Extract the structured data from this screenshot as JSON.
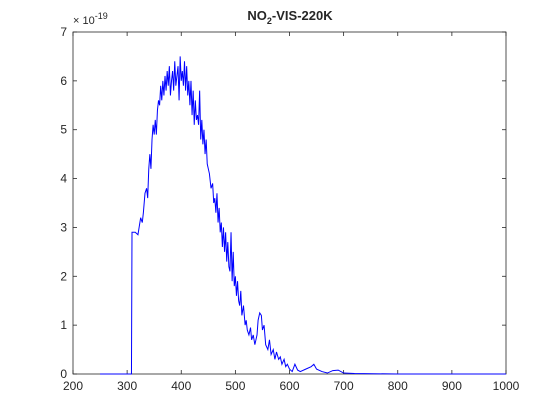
{
  "chart_data": {
    "type": "line",
    "title": {
      "main": "NO",
      "sub": "2",
      "rest": "-VIS-220K"
    },
    "y_exponent": {
      "base": "× 10",
      "power": "-19"
    },
    "x": [
      250,
      305,
      308,
      309,
      315,
      320,
      325,
      328,
      330,
      333,
      336,
      338,
      340,
      342,
      344,
      346,
      348,
      350,
      352,
      354,
      356,
      358,
      360,
      362,
      364,
      366,
      368,
      370,
      372,
      374,
      376,
      378,
      380,
      382,
      384,
      386,
      388,
      390,
      392,
      394,
      396,
      398,
      400,
      402,
      404,
      406,
      408,
      410,
      412,
      414,
      416,
      418,
      420,
      422,
      424,
      426,
      428,
      430,
      432,
      434,
      436,
      438,
      440,
      442,
      444,
      446,
      448,
      450,
      452,
      455,
      458,
      460,
      462,
      464,
      466,
      468,
      470,
      472,
      474,
      476,
      478,
      480,
      482,
      484,
      486,
      488,
      490,
      492,
      494,
      496,
      498,
      500,
      502,
      504,
      506,
      508,
      510,
      512,
      515,
      518,
      520,
      522,
      525,
      528,
      530,
      533,
      536,
      538,
      540,
      542,
      545,
      548,
      550,
      553,
      556,
      560,
      563,
      566,
      570,
      573,
      576,
      580,
      583,
      586,
      590,
      593,
      596,
      600,
      605,
      610,
      615,
      620,
      630,
      640,
      645,
      650,
      660,
      670,
      680,
      690,
      700,
      720,
      800,
      900,
      1000
    ],
    "series": [
      {
        "color": "#0000ff",
        "values": [
          0,
          0,
          0,
          2.9,
          2.9,
          2.85,
          3.2,
          3.1,
          3.3,
          3.7,
          3.8,
          3.6,
          4.2,
          4.5,
          4.2,
          4.8,
          5.1,
          4.9,
          5.2,
          4.9,
          5.4,
          5.6,
          5.5,
          5.9,
          5.6,
          6.0,
          5.7,
          6.1,
          5.8,
          6.2,
          5.9,
          6.3,
          5.7,
          6.0,
          6.2,
          5.8,
          6.4,
          5.9,
          6.1,
          6.3,
          5.6,
          6.5,
          6.0,
          6.2,
          5.9,
          6.4,
          5.8,
          6.3,
          5.7,
          6.0,
          5.5,
          6.0,
          5.3,
          5.8,
          5.1,
          5.6,
          5.2,
          5.3,
          5.1,
          5.8,
          4.8,
          5.2,
          4.7,
          5.0,
          4.5,
          4.8,
          4.3,
          4.2,
          4.1,
          3.8,
          3.9,
          3.5,
          3.6,
          3.3,
          3.7,
          3.1,
          3.4,
          2.9,
          3.1,
          2.6,
          3.0,
          2.5,
          2.9,
          2.3,
          2.7,
          2.2,
          2.1,
          2.9,
          1.9,
          2.5,
          1.8,
          2.0,
          1.6,
          1.9,
          1.5,
          1.4,
          1.7,
          1.2,
          1.4,
          1.0,
          1.1,
          0.9,
          0.8,
          0.95,
          0.7,
          0.8,
          0.6,
          0.7,
          0.8,
          1.1,
          1.25,
          1.2,
          0.9,
          1.0,
          0.6,
          0.5,
          0.7,
          0.4,
          0.5,
          0.3,
          0.45,
          0.3,
          0.35,
          0.2,
          0.3,
          0.15,
          0.2,
          0.1,
          0.05,
          0.2,
          0.08,
          0.05,
          0.1,
          0.15,
          0.2,
          0.1,
          0.05,
          0.02,
          0.07,
          0.08,
          0.02,
          0.01,
          0,
          0,
          0
        ]
      }
    ],
    "xlim": [
      200,
      1000
    ],
    "ylim": [
      0,
      7
    ],
    "xticks": [
      200,
      300,
      400,
      500,
      600,
      700,
      800,
      900,
      1000
    ],
    "yticks": [
      0,
      1,
      2,
      3,
      4,
      5,
      6,
      7
    ]
  }
}
